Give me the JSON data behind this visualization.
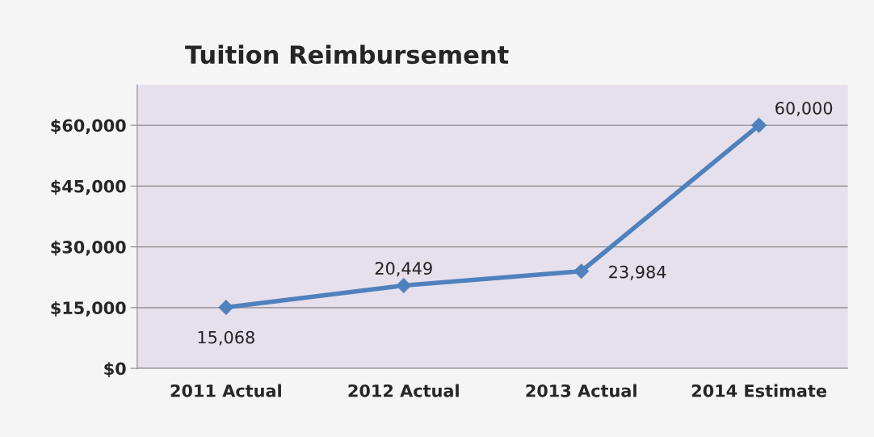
{
  "chart_data": {
    "type": "line",
    "title": "Tuition Reimbursement",
    "categories": [
      "2011 Actual",
      "2012 Actual",
      "2013 Actual",
      "2014 Estimate"
    ],
    "series": [
      {
        "color": "#4f81bd",
        "values": [
          15068,
          20449,
          23984,
          60000
        ],
        "value_labels": [
          "15,068",
          "20,449",
          "23,984",
          "60,000"
        ]
      }
    ],
    "ylim": [
      0,
      70000
    ],
    "yticks": [
      {
        "value": 0,
        "label": "$0"
      },
      {
        "value": 15000,
        "label": "$15,000"
      },
      {
        "value": 30000,
        "label": "$30,000"
      },
      {
        "value": 45000,
        "label": "$45,000"
      },
      {
        "value": 60000,
        "label": "$60,000"
      }
    ],
    "grid": "y",
    "marker": "diamond",
    "line_style": "solid",
    "legend": false
  }
}
